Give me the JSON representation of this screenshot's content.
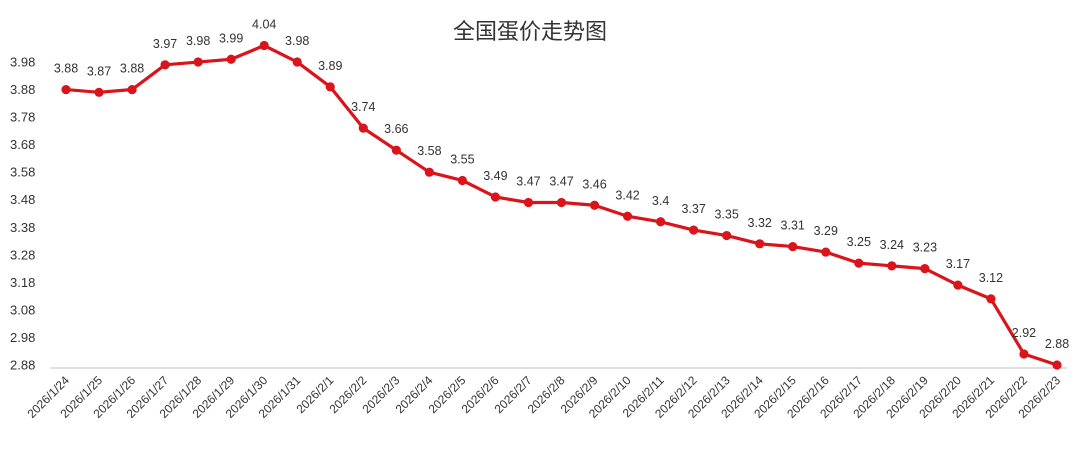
{
  "chart_data": {
    "type": "line",
    "title": "全国蛋价走势图",
    "xlabel": "",
    "ylabel": "",
    "categories": [
      "2026/1/24",
      "2026/1/25",
      "2026/1/26",
      "2026/1/27",
      "2026/1/28",
      "2026/1/29",
      "2026/1/30",
      "2026/1/31",
      "2026/2/1",
      "2026/2/2",
      "2026/2/3",
      "2026/2/4",
      "2026/2/5",
      "2026/2/6",
      "2026/2/7",
      "2026/2/8",
      "2026/2/9",
      "2026/2/10",
      "2026/2/11",
      "2026/2/12",
      "2026/2/13",
      "2026/2/14",
      "2026/2/15",
      "2026/2/16",
      "2026/2/17",
      "2026/2/18",
      "2026/2/19",
      "2026/2/20",
      "2026/2/21",
      "2026/2/22",
      "2026/2/23"
    ],
    "values": [
      3.88,
      3.87,
      3.88,
      3.97,
      3.98,
      3.99,
      4.04,
      3.98,
      3.89,
      3.74,
      3.66,
      3.58,
      3.55,
      3.49,
      3.47,
      3.47,
      3.46,
      3.42,
      3.4,
      3.37,
      3.35,
      3.32,
      3.31,
      3.29,
      3.25,
      3.24,
      3.23,
      3.17,
      3.12,
      2.92,
      2.88
    ],
    "y_ticks": [
      "2.88",
      "2.98",
      "3.08",
      "3.18",
      "3.28",
      "3.38",
      "3.48",
      "3.58",
      "3.68",
      "3.78",
      "3.88",
      "3.98"
    ],
    "ylim": [
      2.88,
      4.06
    ],
    "grid": false,
    "legend": "none",
    "line_color": "#d9141b",
    "marker_color": "#d9141b"
  }
}
